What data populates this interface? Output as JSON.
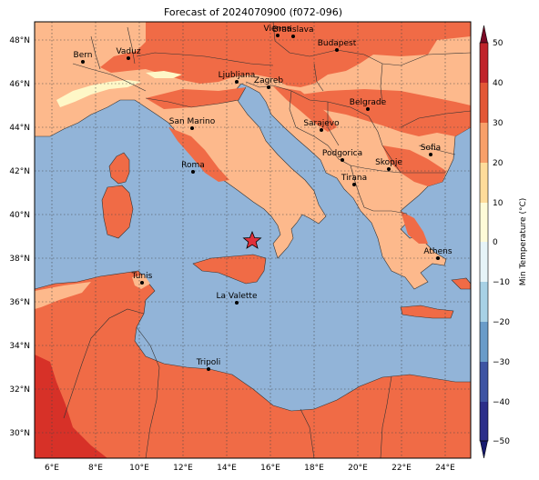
{
  "map": {
    "title": "Forecast of 2024070900 (f072-096)",
    "lon_labels": [
      "6°E",
      "8°E",
      "10°E",
      "12°E",
      "14°E",
      "16°E",
      "18°E",
      "20°E",
      "22°E",
      "24°E"
    ],
    "lat_labels": [
      "48°N",
      "46°N",
      "44°N",
      "42°N",
      "40°N",
      "38°N",
      "36°N",
      "34°N",
      "32°N",
      "30°N"
    ],
    "colors": {
      "sea": "#92b4d8",
      "band_10_20": "#fdb98c",
      "band_20_30": "#f06b46",
      "band_30_40": "#d73128",
      "band_0_10": "#fef7c7",
      "marker": "#e0303a"
    },
    "cities": [
      {
        "name": "Vienna"
      },
      {
        "name": "Bratislava"
      },
      {
        "name": "Budapest"
      },
      {
        "name": "Vaduz"
      },
      {
        "name": "Bern"
      },
      {
        "name": "Ljubljana"
      },
      {
        "name": "Zagreb"
      },
      {
        "name": "Belgrade"
      },
      {
        "name": "San Marino"
      },
      {
        "name": "Sarajevo"
      },
      {
        "name": "Sofia"
      },
      {
        "name": "Roma"
      },
      {
        "name": "Podgorica"
      },
      {
        "name": "Skopje"
      },
      {
        "name": "Tirana"
      },
      {
        "name": "Athens"
      },
      {
        "name": "Tunis"
      },
      {
        "name": "La Valette"
      },
      {
        "name": "Tripoli"
      }
    ],
    "marker_icon": "star-icon"
  },
  "colorbar": {
    "label": "Min Temperature (°C)",
    "ticks": [
      "50",
      "40",
      "30",
      "20",
      "10",
      "0",
      "−10",
      "−20",
      "−30",
      "−40",
      "−50"
    ],
    "colors": [
      "#7a0a26",
      "#c0242b",
      "#e35736",
      "#f8a06a",
      "#fedc9a",
      "#fefbd8",
      "#e6f4f8",
      "#a7d1e5",
      "#6a9cc9",
      "#3e54a3",
      "#2c2f8a",
      "#171a6f"
    ]
  }
}
